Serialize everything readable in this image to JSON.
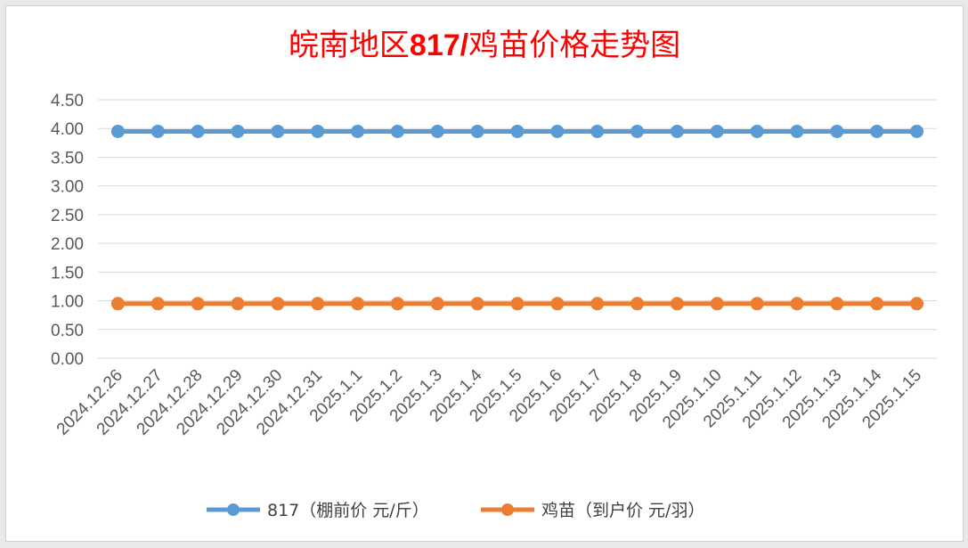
{
  "colors": {
    "title": "#ff0000",
    "series_817": "#5b9bd5",
    "series_chick": "#ed7d31",
    "grid": "#d9d9d9",
    "tick_text": "#595959"
  },
  "chart_data": {
    "type": "line",
    "title": "皖南地区817/鸡苗价格走势图",
    "title_parts": [
      "皖南地区",
      "817/",
      "鸡苗价格走势图"
    ],
    "xlabel": "",
    "ylabel": "",
    "ylim": [
      0,
      4.5
    ],
    "yticks": [
      "0.00",
      "0.50",
      "1.00",
      "1.50",
      "2.00",
      "2.50",
      "3.00",
      "3.50",
      "4.00",
      "4.50"
    ],
    "grid": true,
    "legend_position": "bottom",
    "categories": [
      "2024.12.26",
      "2024.12.27",
      "2024.12.28",
      "2024.12.29",
      "2024.12.30",
      "2024.12.31",
      "2025.1.1",
      "2025.1.2",
      "2025.1.3",
      "2025.1.4",
      "2025.1.5",
      "2025.1.6",
      "2025.1.7",
      "2025.1.8",
      "2025.1.9",
      "2025.1.10",
      "2025.1.11",
      "2025.1.12",
      "2025.1.13",
      "2025.1.14",
      "2025.1.15"
    ],
    "series": [
      {
        "name": "817（棚前价 元/斤）",
        "color": "#5b9bd5",
        "values": [
          3.95,
          3.95,
          3.95,
          3.95,
          3.95,
          3.95,
          3.95,
          3.95,
          3.95,
          3.95,
          3.95,
          3.95,
          3.95,
          3.95,
          3.95,
          3.95,
          3.95,
          3.95,
          3.95,
          3.95,
          3.95
        ]
      },
      {
        "name": "鸡苗（到户价 元/羽）",
        "color": "#ed7d31",
        "values": [
          0.95,
          0.95,
          0.95,
          0.95,
          0.95,
          0.95,
          0.95,
          0.95,
          0.95,
          0.95,
          0.95,
          0.95,
          0.95,
          0.95,
          0.95,
          0.95,
          0.95,
          0.95,
          0.95,
          0.95,
          0.95
        ]
      }
    ]
  }
}
